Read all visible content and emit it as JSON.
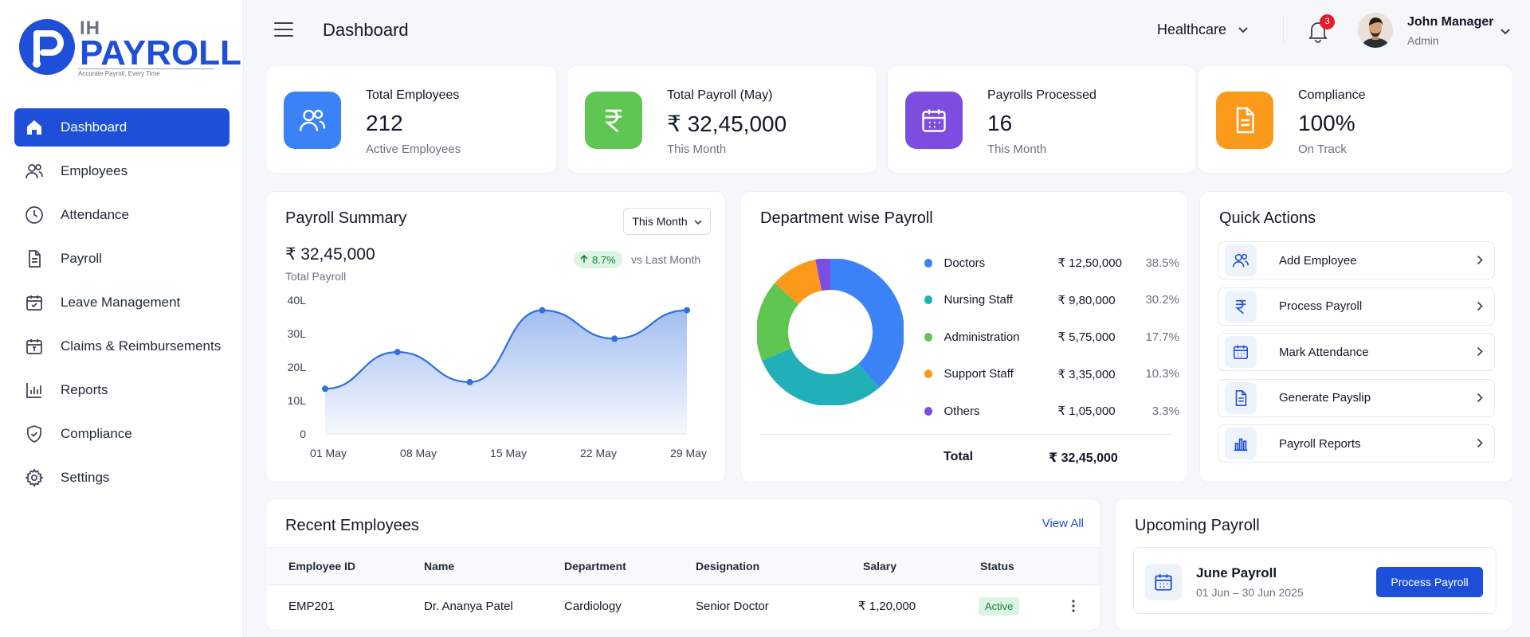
{
  "brand": {
    "prefix": "IH",
    "word": "PAYROLL",
    "tagline": "Accurate Payroll, Every Time"
  },
  "sidebar": {
    "items": [
      {
        "label": "Dashboard",
        "icon": "home-icon",
        "active": true
      },
      {
        "label": "Employees",
        "icon": "users-icon"
      },
      {
        "label": "Attendance",
        "icon": "clock-icon"
      },
      {
        "label": "Payroll",
        "icon": "document-icon"
      },
      {
        "label": "Leave Management",
        "icon": "calendar-icon"
      },
      {
        "label": "Claims & Reimbursements",
        "icon": "receipt-icon"
      },
      {
        "label": "Reports",
        "icon": "bar-chart-icon"
      },
      {
        "label": "Compliance",
        "icon": "shield-icon"
      },
      {
        "label": "Settings",
        "icon": "gear-icon"
      }
    ]
  },
  "header": {
    "title": "Dashboard",
    "org": "Healthcare",
    "notifications": "3",
    "user": {
      "name": "John Manager",
      "role": "Admin"
    }
  },
  "stats": [
    {
      "label": "Total Employees",
      "value": "212",
      "sub": "Active Employees",
      "color": "#3b82f6",
      "icon": "users-icon"
    },
    {
      "label": "Total Payroll (May)",
      "value": "₹ 32,45,000",
      "sub": "This Month",
      "color": "#5fc653",
      "icon": "rupee-icon"
    },
    {
      "label": "Payrolls Processed",
      "value": "16",
      "sub": "This Month",
      "color": "#7c4ddf",
      "icon": "calendar-icon"
    },
    {
      "label": "Compliance",
      "value": "100%",
      "sub": "On Track",
      "color": "#fb9a1a",
      "icon": "document-icon"
    }
  ],
  "payroll_summary": {
    "title": "Payroll Summary",
    "period": "This Month",
    "value": "₹ 32,45,000",
    "value_label": "Total Payroll",
    "trend": "8.7%",
    "trend_label": "vs Last Month"
  },
  "chart_data": {
    "type": "area",
    "x": [
      "01 May",
      "06 May",
      "11 May",
      "18 May",
      "23 May",
      "29 May"
    ],
    "x_ticks": [
      "01 May",
      "08 May",
      "15 May",
      "22 May",
      "29 May"
    ],
    "y_ticks": [
      "40L",
      "30L",
      "20L",
      "10L",
      "0"
    ],
    "values": [
      13.5,
      24.5,
      15.5,
      37,
      28.5,
      37
    ],
    "ylim": [
      0,
      40
    ],
    "color": "#2f6fe0"
  },
  "department": {
    "title": "Department wise Payroll",
    "items": [
      {
        "name": "Doctors",
        "amount": "₹ 12,50,000",
        "pct": "38.5%",
        "value": 38.5,
        "color": "#3b82f6"
      },
      {
        "name": "Nursing Staff",
        "amount": "₹ 9,80,000",
        "pct": "30.2%",
        "value": 30.2,
        "color": "#22b0b8"
      },
      {
        "name": "Administration",
        "amount": "₹ 5,75,000",
        "pct": "17.7%",
        "value": 17.7,
        "color": "#5fc653"
      },
      {
        "name": "Support Staff",
        "amount": "₹ 3,35,000",
        "pct": "10.3%",
        "value": 10.3,
        "color": "#fb9a1a"
      },
      {
        "name": "Others",
        "amount": "₹ 1,05,000",
        "pct": "3.3%",
        "value": 3.3,
        "color": "#7c4ddf"
      }
    ],
    "total_label": "Total",
    "total_value": "₹ 32,45,000"
  },
  "quick_actions": {
    "title": "Quick Actions",
    "items": [
      {
        "label": "Add Employee",
        "icon": "users-icon"
      },
      {
        "label": "Process Payroll",
        "icon": "rupee-icon"
      },
      {
        "label": "Mark Attendance",
        "icon": "calendar-icon"
      },
      {
        "label": "Generate Payslip",
        "icon": "document-icon"
      },
      {
        "label": "Payroll Reports",
        "icon": "bar-chart-icon"
      }
    ]
  },
  "recent_employees": {
    "title": "Recent Employees",
    "view_all": "View All",
    "columns": [
      "Employee ID",
      "Name",
      "Department",
      "Designation",
      "Salary",
      "Status"
    ],
    "rows": [
      {
        "id": "EMP201",
        "name": "Dr. Ananya Patel",
        "department": "Cardiology",
        "designation": "Senior Doctor",
        "salary": "₹ 1,20,000",
        "status": "Active"
      }
    ]
  },
  "upcoming_payroll": {
    "title": "Upcoming Payroll",
    "name": "June Payroll",
    "dates": "01 Jun – 30 Jun 2025",
    "button": "Process Payroll"
  }
}
